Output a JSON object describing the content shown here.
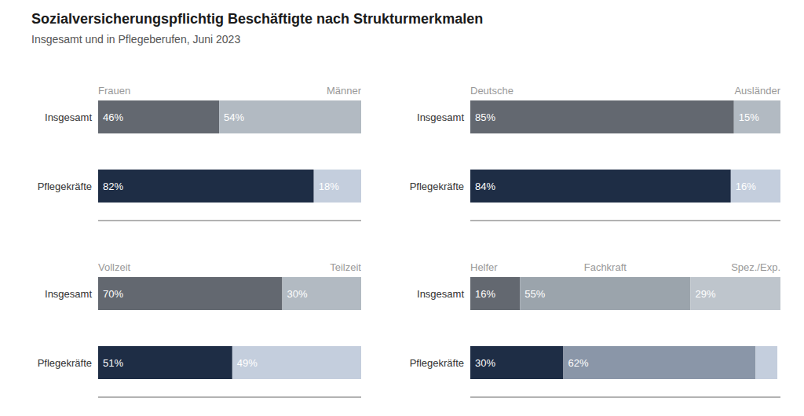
{
  "title": "Sozialversicherungspflichtig Beschäftigte nach Strukturmerkmalen",
  "subtitle": "Insgesamt und in Pflegeberufen, Juni 2023",
  "chart_data": [
    {
      "type": "bar",
      "orientation": "horizontal",
      "stacked": true,
      "data_labels": true,
      "tick_labels": "y",
      "grid": false,
      "xlim": [
        0,
        100
      ],
      "categories": [
        "Insgesamt",
        "Pflegekräfte"
      ],
      "series": [
        {
          "name": "Frauen",
          "values": [
            46,
            82
          ],
          "value_labels": [
            "46%",
            "82%"
          ],
          "colors": [
            "#636870",
            "#1e2d45"
          ]
        },
        {
          "name": "Männer",
          "values": [
            54,
            18
          ],
          "value_labels": [
            "54%",
            "18%"
          ],
          "colors": [
            "#b2bac2",
            "#c4cedd"
          ]
        }
      ]
    },
    {
      "type": "bar",
      "orientation": "horizontal",
      "stacked": true,
      "data_labels": true,
      "tick_labels": "y",
      "grid": false,
      "xlim": [
        0,
        100
      ],
      "categories": [
        "Insgesamt",
        "Pflegekräfte"
      ],
      "series": [
        {
          "name": "Deutsche",
          "values": [
            85,
            84
          ],
          "value_labels": [
            "85%",
            "84%"
          ],
          "colors": [
            "#636870",
            "#1e2d45"
          ]
        },
        {
          "name": "Ausländer",
          "values": [
            15,
            16
          ],
          "value_labels": [
            "15%",
            "16%"
          ],
          "colors": [
            "#b2bac2",
            "#c4cedd"
          ]
        }
      ]
    },
    {
      "type": "bar",
      "orientation": "horizontal",
      "stacked": true,
      "data_labels": true,
      "tick_labels": "y",
      "grid": false,
      "xlim": [
        0,
        100
      ],
      "categories": [
        "Insgesamt",
        "Pflegekräfte"
      ],
      "series": [
        {
          "name": "Vollzeit",
          "values": [
            70,
            51
          ],
          "value_labels": [
            "70%",
            "51%"
          ],
          "colors": [
            "#636870",
            "#1e2d45"
          ]
        },
        {
          "name": "Teilzeit",
          "values": [
            30,
            49
          ],
          "value_labels": [
            "30%",
            "49%"
          ],
          "colors": [
            "#b2bac2",
            "#c4cedd"
          ]
        }
      ]
    },
    {
      "type": "bar",
      "orientation": "horizontal",
      "stacked": true,
      "data_labels": true,
      "tick_labels": "y",
      "grid": false,
      "xlim": [
        0,
        100
      ],
      "categories": [
        "Insgesamt",
        "Pflegekräfte"
      ],
      "series": [
        {
          "name": "Helfer",
          "values": [
            16,
            30
          ],
          "value_labels": [
            "16%",
            "30%"
          ],
          "colors": [
            "#636870",
            "#1e2d45"
          ]
        },
        {
          "name": "Fachkraft",
          "values": [
            55,
            62
          ],
          "value_labels": [
            "55%",
            "62%"
          ],
          "colors": [
            "#9ba4ac",
            "#8a96a8"
          ]
        },
        {
          "name": "Spez./Exp.",
          "values": [
            29,
            7
          ],
          "value_labels": [
            "29%",
            null
          ],
          "colors": [
            "#bec5cc",
            "#c4cedd"
          ]
        }
      ]
    }
  ]
}
